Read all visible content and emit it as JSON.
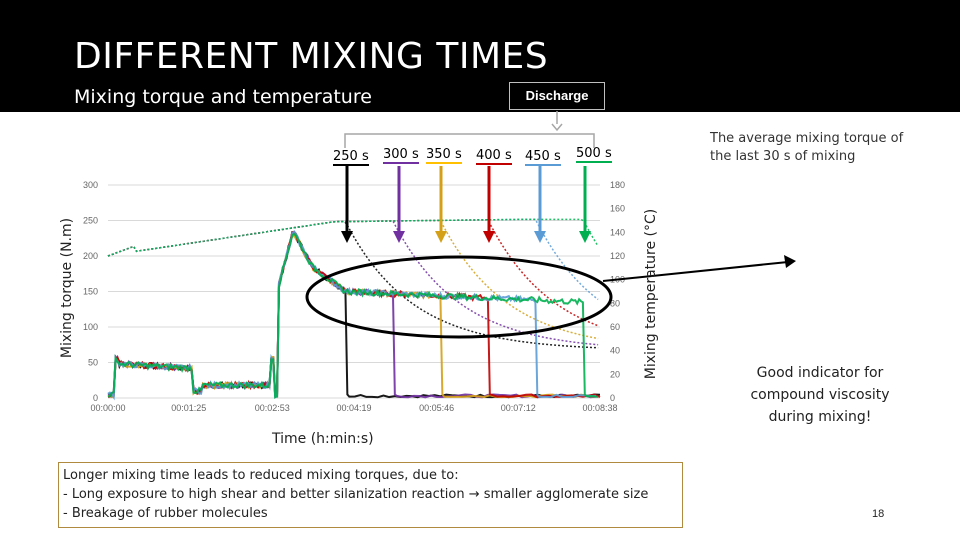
{
  "slide": {
    "title": "DIFFERENT MIXING TIMES",
    "subtitle": "Mixing torque and temperature",
    "discharge_label": "Discharge",
    "page_number": "18"
  },
  "time_labels": [
    {
      "text": "250 s",
      "color": "#000000"
    },
    {
      "text": "300 s",
      "color": "#7030a0"
    },
    {
      "text": "350 s",
      "color": "#d4a017"
    },
    {
      "text": "400 s",
      "color": "#c00000"
    },
    {
      "text": "450 s",
      "color": "#5b9bd5"
    },
    {
      "text": "500 s",
      "color": "#00b050"
    }
  ],
  "notes": {
    "average_torque": "The average mixing torque of the last 30 s of mixing",
    "good_indicator": "Good indicator for compound viscosity during mixing!"
  },
  "axis_labels": {
    "left": "Mixing torque (N.m)",
    "right": "Mixing temperature (°C)",
    "bottom": "Time (h:min:s)"
  },
  "conclusion": {
    "heading": "Longer mixing time leads to reduced mixing torques, due to:",
    "bullets": [
      "-   Long exposure to high shear and better silanization reaction → smaller agglomerate size",
      "-   Breakage of rubber molecules"
    ]
  },
  "chart_data": {
    "type": "line",
    "xlabel": "Time (h:min:s)",
    "ylabel": "Mixing torque (N.m)",
    "y2label": "Mixing temperature (°C)",
    "x_ticks": [
      "00:00:00",
      "00:01:25",
      "00:02:53",
      "00:04:19",
      "00:05:46",
      "00:07:12",
      "00:08:38"
    ],
    "y_ticks": [
      0,
      50,
      100,
      150,
      200,
      250,
      300
    ],
    "y2_ticks": [
      0,
      20,
      40,
      60,
      80,
      100,
      120,
      140,
      160,
      180
    ],
    "ylim": [
      0,
      300
    ],
    "y2lim": [
      0,
      180
    ],
    "grid": true,
    "series": [
      {
        "discharge_s": 250,
        "color": "#000000"
      },
      {
        "discharge_s": 300,
        "color": "#7030a0"
      },
      {
        "discharge_s": 350,
        "color": "#d4a017"
      },
      {
        "discharge_s": 400,
        "color": "#c00000"
      },
      {
        "discharge_s": 450,
        "color": "#5b9bd5"
      },
      {
        "discharge_s": 500,
        "color": "#00b050"
      }
    ]
  }
}
